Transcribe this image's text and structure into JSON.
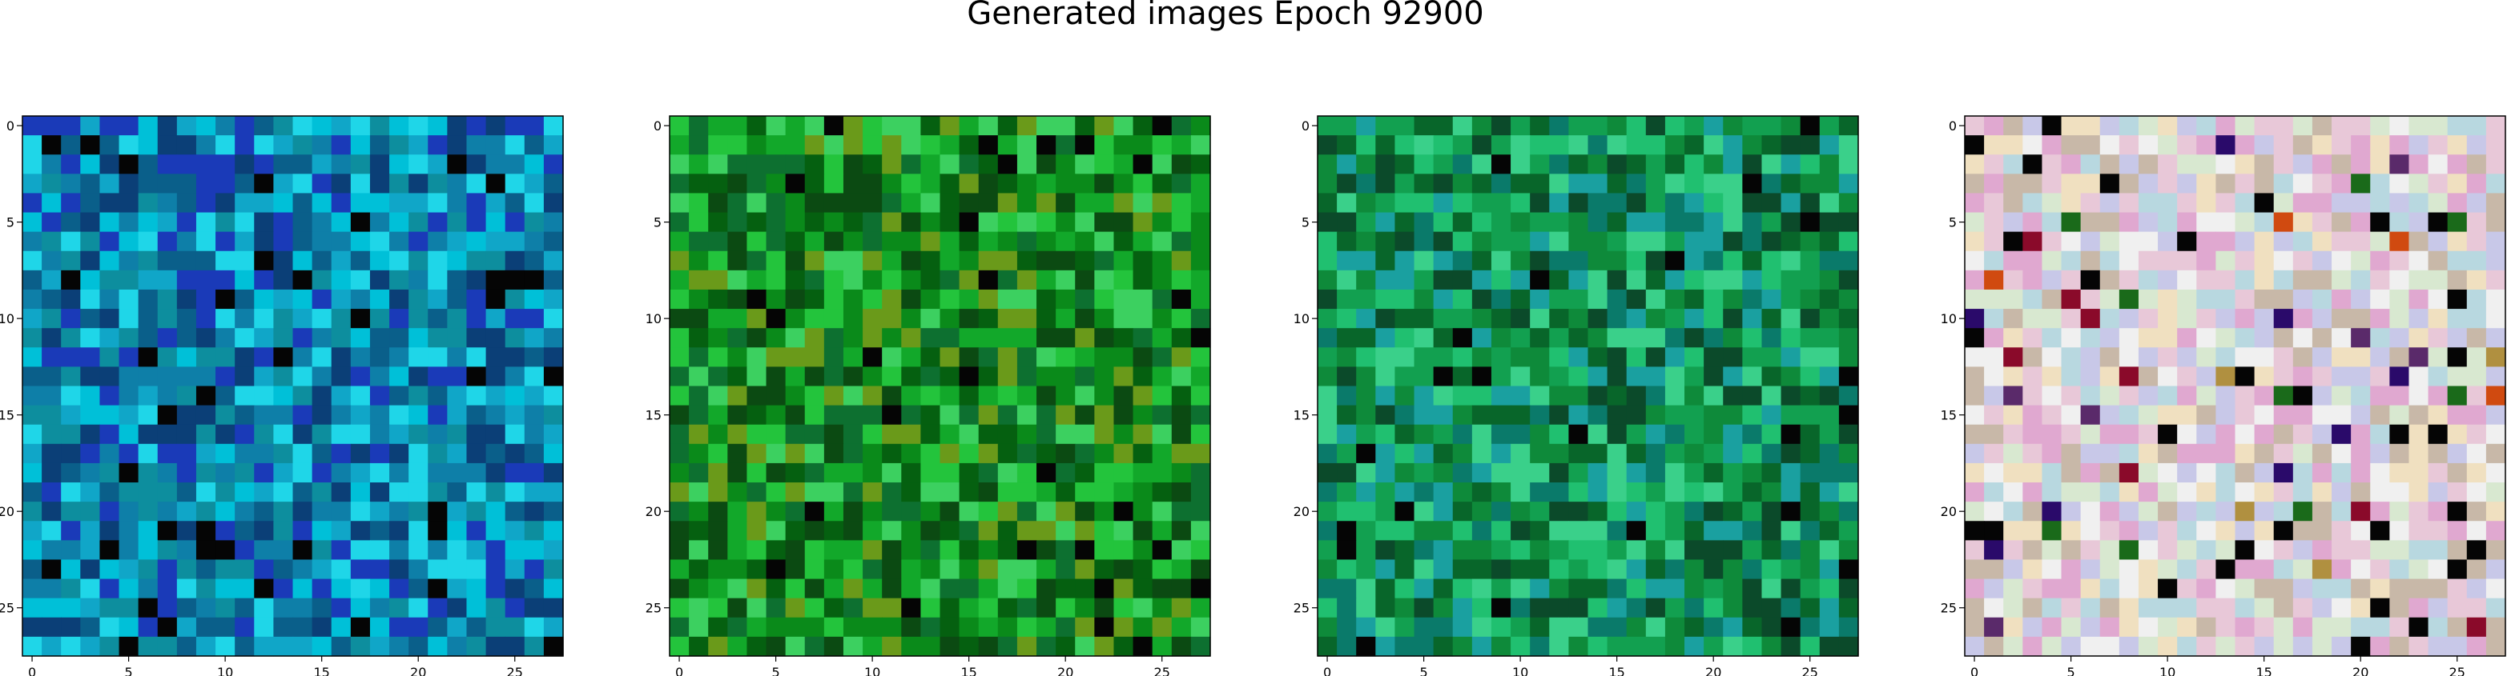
{
  "figure": {
    "title": "Generated images Epoch 92900"
  },
  "panels": [
    {
      "name": "image-1",
      "palette": "blue",
      "x_ticks": [
        "0",
        "5",
        "10",
        "15",
        "20",
        "25"
      ],
      "y_ticks": [
        "0",
        "5",
        "10",
        "15",
        "20",
        "25"
      ]
    },
    {
      "name": "image-2",
      "palette": "green",
      "x_ticks": [
        "0",
        "5",
        "10",
        "15",
        "20",
        "25"
      ],
      "y_ticks": [
        "0",
        "5",
        "10",
        "15",
        "20",
        "25"
      ]
    },
    {
      "name": "image-3",
      "palette": "teal",
      "x_ticks": [
        "0",
        "5",
        "10",
        "15",
        "20",
        "25"
      ],
      "y_ticks": [
        "0",
        "5",
        "10",
        "15",
        "20",
        "25"
      ]
    },
    {
      "name": "image-4",
      "palette": "pastel",
      "x_ticks": [
        "0",
        "5",
        "10",
        "15",
        "20",
        "25"
      ],
      "y_ticks": [
        "0",
        "5",
        "10",
        "15",
        "20",
        "25"
      ]
    }
  ],
  "image_grid": {
    "rows": 28,
    "cols": 28
  },
  "colors": {
    "blue": [
      "#0e7fa8",
      "#10a6c8",
      "#0a5f8a",
      "#1fd6e8",
      "#0b3f77",
      "#1a3ab8",
      "#00c0d8",
      "#0d8e9e"
    ],
    "green": [
      "#0a8a1a",
      "#12a82a",
      "#056010",
      "#23c43c",
      "#0b4a12",
      "#3cd060",
      "#6a9a1a",
      "#0d7030"
    ],
    "teal": [
      "#0e8a3a",
      "#12a050",
      "#08662a",
      "#20c070",
      "#0b4a2a",
      "#3ad08a",
      "#0a7a6a",
      "#1aa0a0"
    ],
    "pastel": [
      "#e8c8d8",
      "#d8e8d0",
      "#c8c8e8",
      "#f0e0c0",
      "#e0a8d0",
      "#b8d8e0",
      "#f0f0f0",
      "#c8b8a8"
    ]
  }
}
